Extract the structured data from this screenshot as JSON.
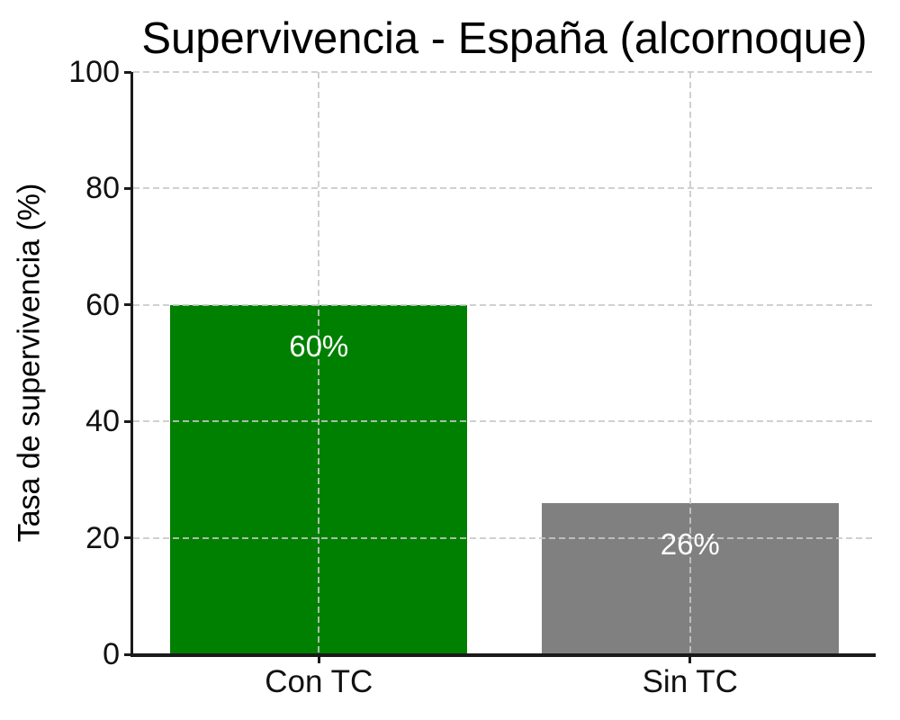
{
  "chart_data": {
    "type": "bar",
    "title": "Supervivencia - España (alcornoque)",
    "xlabel": "",
    "ylabel": "Tasa de supervivencia (%)",
    "categories": [
      "Con TC",
      "Sin TC"
    ],
    "values": [
      60,
      26
    ],
    "bar_labels": [
      "60%",
      "26%"
    ],
    "bar_colors": [
      "#008000",
      "#808080"
    ],
    "bar_label_color": "#ffffff",
    "bar_width_fraction": 0.8,
    "ylim": [
      0,
      100
    ],
    "yticks": [
      0,
      20,
      40,
      60,
      80,
      100
    ],
    "grid": "dashed horizontal lines at yticks and dashed vertical lines at bar centers, drawn over bars",
    "grid_color": "200,200,200",
    "grid_alpha": 0.85,
    "axis_color": "#1a1a1a",
    "background_color": "#ffffff",
    "legend": "none"
  }
}
